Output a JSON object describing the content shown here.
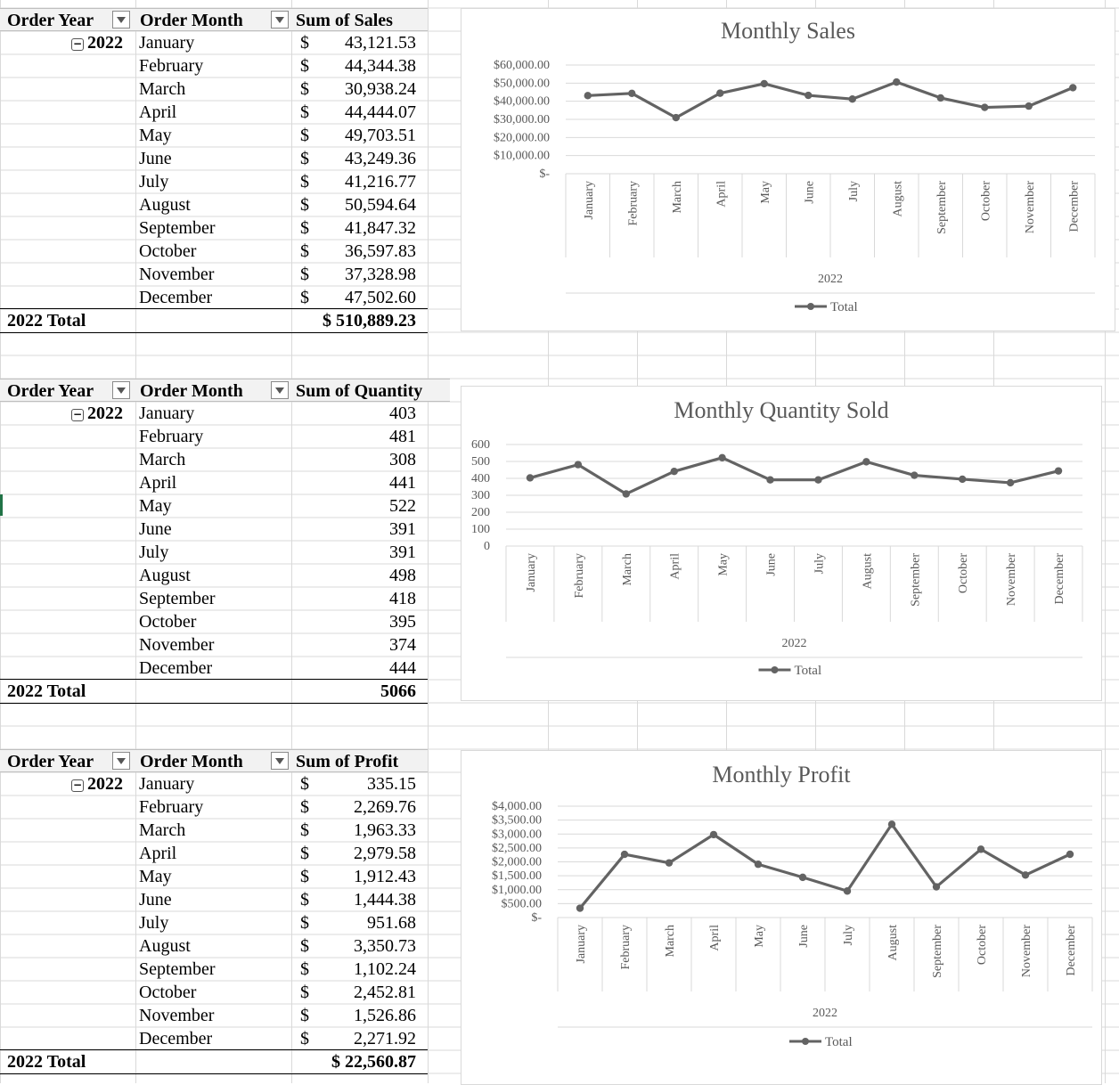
{
  "pivots": [
    {
      "headers": {
        "order_year": "Order Year",
        "order_month": "Order Month",
        "value": "Sum of Sales"
      },
      "year": "2022",
      "currency": true,
      "rows": [
        {
          "month": "January",
          "value": "43,121.53"
        },
        {
          "month": "February",
          "value": "44,344.38"
        },
        {
          "month": "March",
          "value": "30,938.24"
        },
        {
          "month": "April",
          "value": "44,444.07"
        },
        {
          "month": "May",
          "value": "49,703.51"
        },
        {
          "month": "June",
          "value": "43,249.36"
        },
        {
          "month": "July",
          "value": "41,216.77"
        },
        {
          "month": "August",
          "value": "50,594.64"
        },
        {
          "month": "September",
          "value": "41,847.32"
        },
        {
          "month": "October",
          "value": "36,597.83"
        },
        {
          "month": "November",
          "value": "37,328.98"
        },
        {
          "month": "December",
          "value": "47,502.60"
        }
      ],
      "total_label": "2022 Total",
      "total_value": "$ 510,889.23"
    },
    {
      "headers": {
        "order_year": "Order Year",
        "order_month": "Order Month",
        "value": "Sum of Quantity"
      },
      "year": "2022",
      "currency": false,
      "rows": [
        {
          "month": "January",
          "value": "403"
        },
        {
          "month": "February",
          "value": "481"
        },
        {
          "month": "March",
          "value": "308"
        },
        {
          "month": "April",
          "value": "441"
        },
        {
          "month": "May",
          "value": "522"
        },
        {
          "month": "June",
          "value": "391"
        },
        {
          "month": "July",
          "value": "391"
        },
        {
          "month": "August",
          "value": "498"
        },
        {
          "month": "September",
          "value": "418"
        },
        {
          "month": "October",
          "value": "395"
        },
        {
          "month": "November",
          "value": "374"
        },
        {
          "month": "December",
          "value": "444"
        }
      ],
      "total_label": "2022 Total",
      "total_value": "5066"
    },
    {
      "headers": {
        "order_year": "Order Year",
        "order_month": "Order Month",
        "value": "Sum of Profit"
      },
      "year": "2022",
      "currency": true,
      "rows": [
        {
          "month": "January",
          "value": "335.15"
        },
        {
          "month": "February",
          "value": "2,269.76"
        },
        {
          "month": "March",
          "value": "1,963.33"
        },
        {
          "month": "April",
          "value": "2,979.58"
        },
        {
          "month": "May",
          "value": "1,912.43"
        },
        {
          "month": "June",
          "value": "1,444.38"
        },
        {
          "month": "July",
          "value": "951.68"
        },
        {
          "month": "August",
          "value": "3,350.73"
        },
        {
          "month": "September",
          "value": "1,102.24"
        },
        {
          "month": "October",
          "value": "2,452.81"
        },
        {
          "month": "November",
          "value": "1,526.86"
        },
        {
          "month": "December",
          "value": "2,271.92"
        }
      ],
      "total_label": "2022 Total",
      "total_value": "$ 22,560.87"
    }
  ],
  "currency_symbol": "$",
  "chart_data": [
    {
      "type": "line",
      "title": "Monthly Sales",
      "categories": [
        "January",
        "February",
        "March",
        "April",
        "May",
        "June",
        "July",
        "August",
        "September",
        "October",
        "November",
        "December"
      ],
      "group_label": "2022",
      "series": [
        {
          "name": "Total",
          "values": [
            43121.53,
            44344.38,
            30938.24,
            44444.07,
            49703.51,
            43249.36,
            41216.77,
            50594.64,
            41847.32,
            36597.83,
            37328.98,
            47502.6
          ]
        }
      ],
      "ylim": [
        0,
        60000
      ],
      "yticks": [
        "$-",
        "$10,000.00",
        "$20,000.00",
        "$30,000.00",
        "$40,000.00",
        "$50,000.00",
        "$60,000.00"
      ],
      "grid": true,
      "legend": "bottom",
      "color": "#636363"
    },
    {
      "type": "line",
      "title": "Monthly Quantity Sold",
      "categories": [
        "January",
        "February",
        "March",
        "April",
        "May",
        "June",
        "July",
        "August",
        "September",
        "October",
        "November",
        "December"
      ],
      "group_label": "2022",
      "series": [
        {
          "name": "Total",
          "values": [
            403,
            481,
            308,
            441,
            522,
            391,
            391,
            498,
            418,
            395,
            374,
            444
          ]
        }
      ],
      "ylim": [
        0,
        600
      ],
      "yticks": [
        "0",
        "100",
        "200",
        "300",
        "400",
        "500",
        "600"
      ],
      "grid": true,
      "legend": "bottom",
      "color": "#636363"
    },
    {
      "type": "line",
      "title": "Monthly Profit",
      "categories": [
        "January",
        "February",
        "March",
        "April",
        "May",
        "June",
        "July",
        "August",
        "September",
        "October",
        "November",
        "December"
      ],
      "group_label": "2022",
      "series": [
        {
          "name": "Total",
          "values": [
            335.15,
            2269.76,
            1963.33,
            2979.58,
            1912.43,
            1444.38,
            951.68,
            3350.73,
            1102.24,
            2452.81,
            1526.86,
            2271.92
          ]
        }
      ],
      "ylim": [
        0,
        4000
      ],
      "yticks": [
        "$-",
        "$500.00",
        "$1,000.00",
        "$1,500.00",
        "$2,000.00",
        "$2,500.00",
        "$3,000.00",
        "$3,500.00",
        "$4,000.00"
      ],
      "grid": true,
      "legend": "bottom",
      "color": "#636363"
    }
  ]
}
